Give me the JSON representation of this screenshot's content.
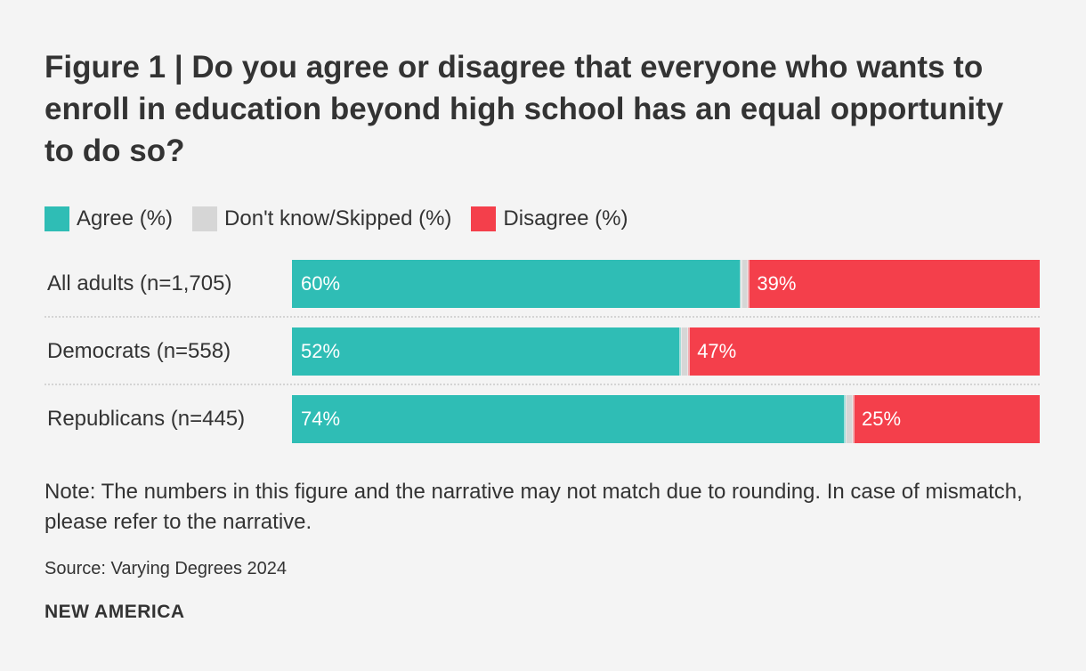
{
  "title": "Figure 1 | Do you agree or disagree that everyone who wants to enroll in education beyond high school has an equal opportunity to do so?",
  "legend": [
    {
      "label": "Agree (%)",
      "color": "#2fbdb5"
    },
    {
      "label": "Don't know/Skipped (%)",
      "color": "#d6d6d6"
    },
    {
      "label": "Disagree (%)",
      "color": "#f43f4b"
    }
  ],
  "chart_data": {
    "type": "bar",
    "orientation": "horizontal-stacked",
    "xlim": [
      0,
      100
    ],
    "categories": [
      "All adults (n=1,705)",
      "Democrats (n=558)",
      "Republicans (n=445)"
    ],
    "series": [
      {
        "name": "Agree (%)",
        "values": [
          60,
          52,
          74
        ],
        "labels": [
          "60%",
          "52%",
          "74%"
        ],
        "color": "#2fbdb5"
      },
      {
        "name": "Don't know/Skipped (%)",
        "values": [
          1,
          1,
          1
        ],
        "labels": [
          "",
          "",
          ""
        ],
        "color": "#d6d6d6"
      },
      {
        "name": "Disagree (%)",
        "values": [
          39,
          47,
          25
        ],
        "labels": [
          "39%",
          "47%",
          "25%"
        ],
        "color": "#f43f4b"
      }
    ]
  },
  "note": "Note: The numbers in this figure and the narrative may not match due to rounding. In case of mismatch, please refer to the narrative.",
  "source": "Source: Varying Degrees 2024",
  "brand": "NEW AMERICA"
}
